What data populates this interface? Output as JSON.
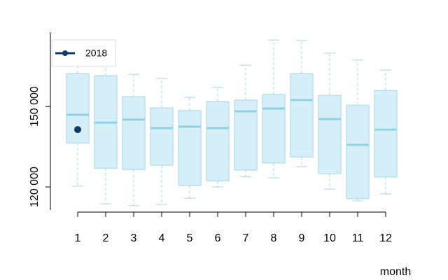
{
  "chart_data": {
    "type": "boxplot",
    "x_label": "month",
    "categories": [
      "1",
      "2",
      "3",
      "4",
      "5",
      "6",
      "7",
      "8",
      "9",
      "10",
      "11",
      "12"
    ],
    "whisker_low": [
      120300,
      113700,
      113000,
      113500,
      115800,
      120000,
      123900,
      123400,
      127600,
      119200,
      114800,
      117400
    ],
    "q1": [
      136400,
      127000,
      126500,
      128100,
      120500,
      122300,
      126300,
      128900,
      131200,
      125000,
      115600,
      123700
    ],
    "median": [
      146900,
      144000,
      145100,
      141900,
      142500,
      141900,
      148200,
      149200,
      152400,
      145300,
      135700,
      141400
    ],
    "q3": [
      162300,
      161500,
      153700,
      149500,
      148500,
      151900,
      152400,
      154500,
      162300,
      154200,
      150500,
      156000
    ],
    "whisker_high": [
      166700,
      167500,
      162000,
      160500,
      153400,
      157100,
      165400,
      174800,
      174600,
      169900,
      167300,
      163600
    ],
    "box_color": "#d6eef7",
    "box_edge": "#a3d7ea",
    "median_color": "#8fd0e8",
    "ylim": [
      111400,
      177700
    ],
    "yticks": [
      {
        "value": 120000,
        "label": "120 000"
      },
      {
        "value": 150000,
        "label": "150 000"
      }
    ],
    "points": {
      "name": "2018",
      "color": "#0d3d66",
      "x": [
        1
      ],
      "values": [
        141400
      ]
    },
    "legend": "top-left"
  }
}
